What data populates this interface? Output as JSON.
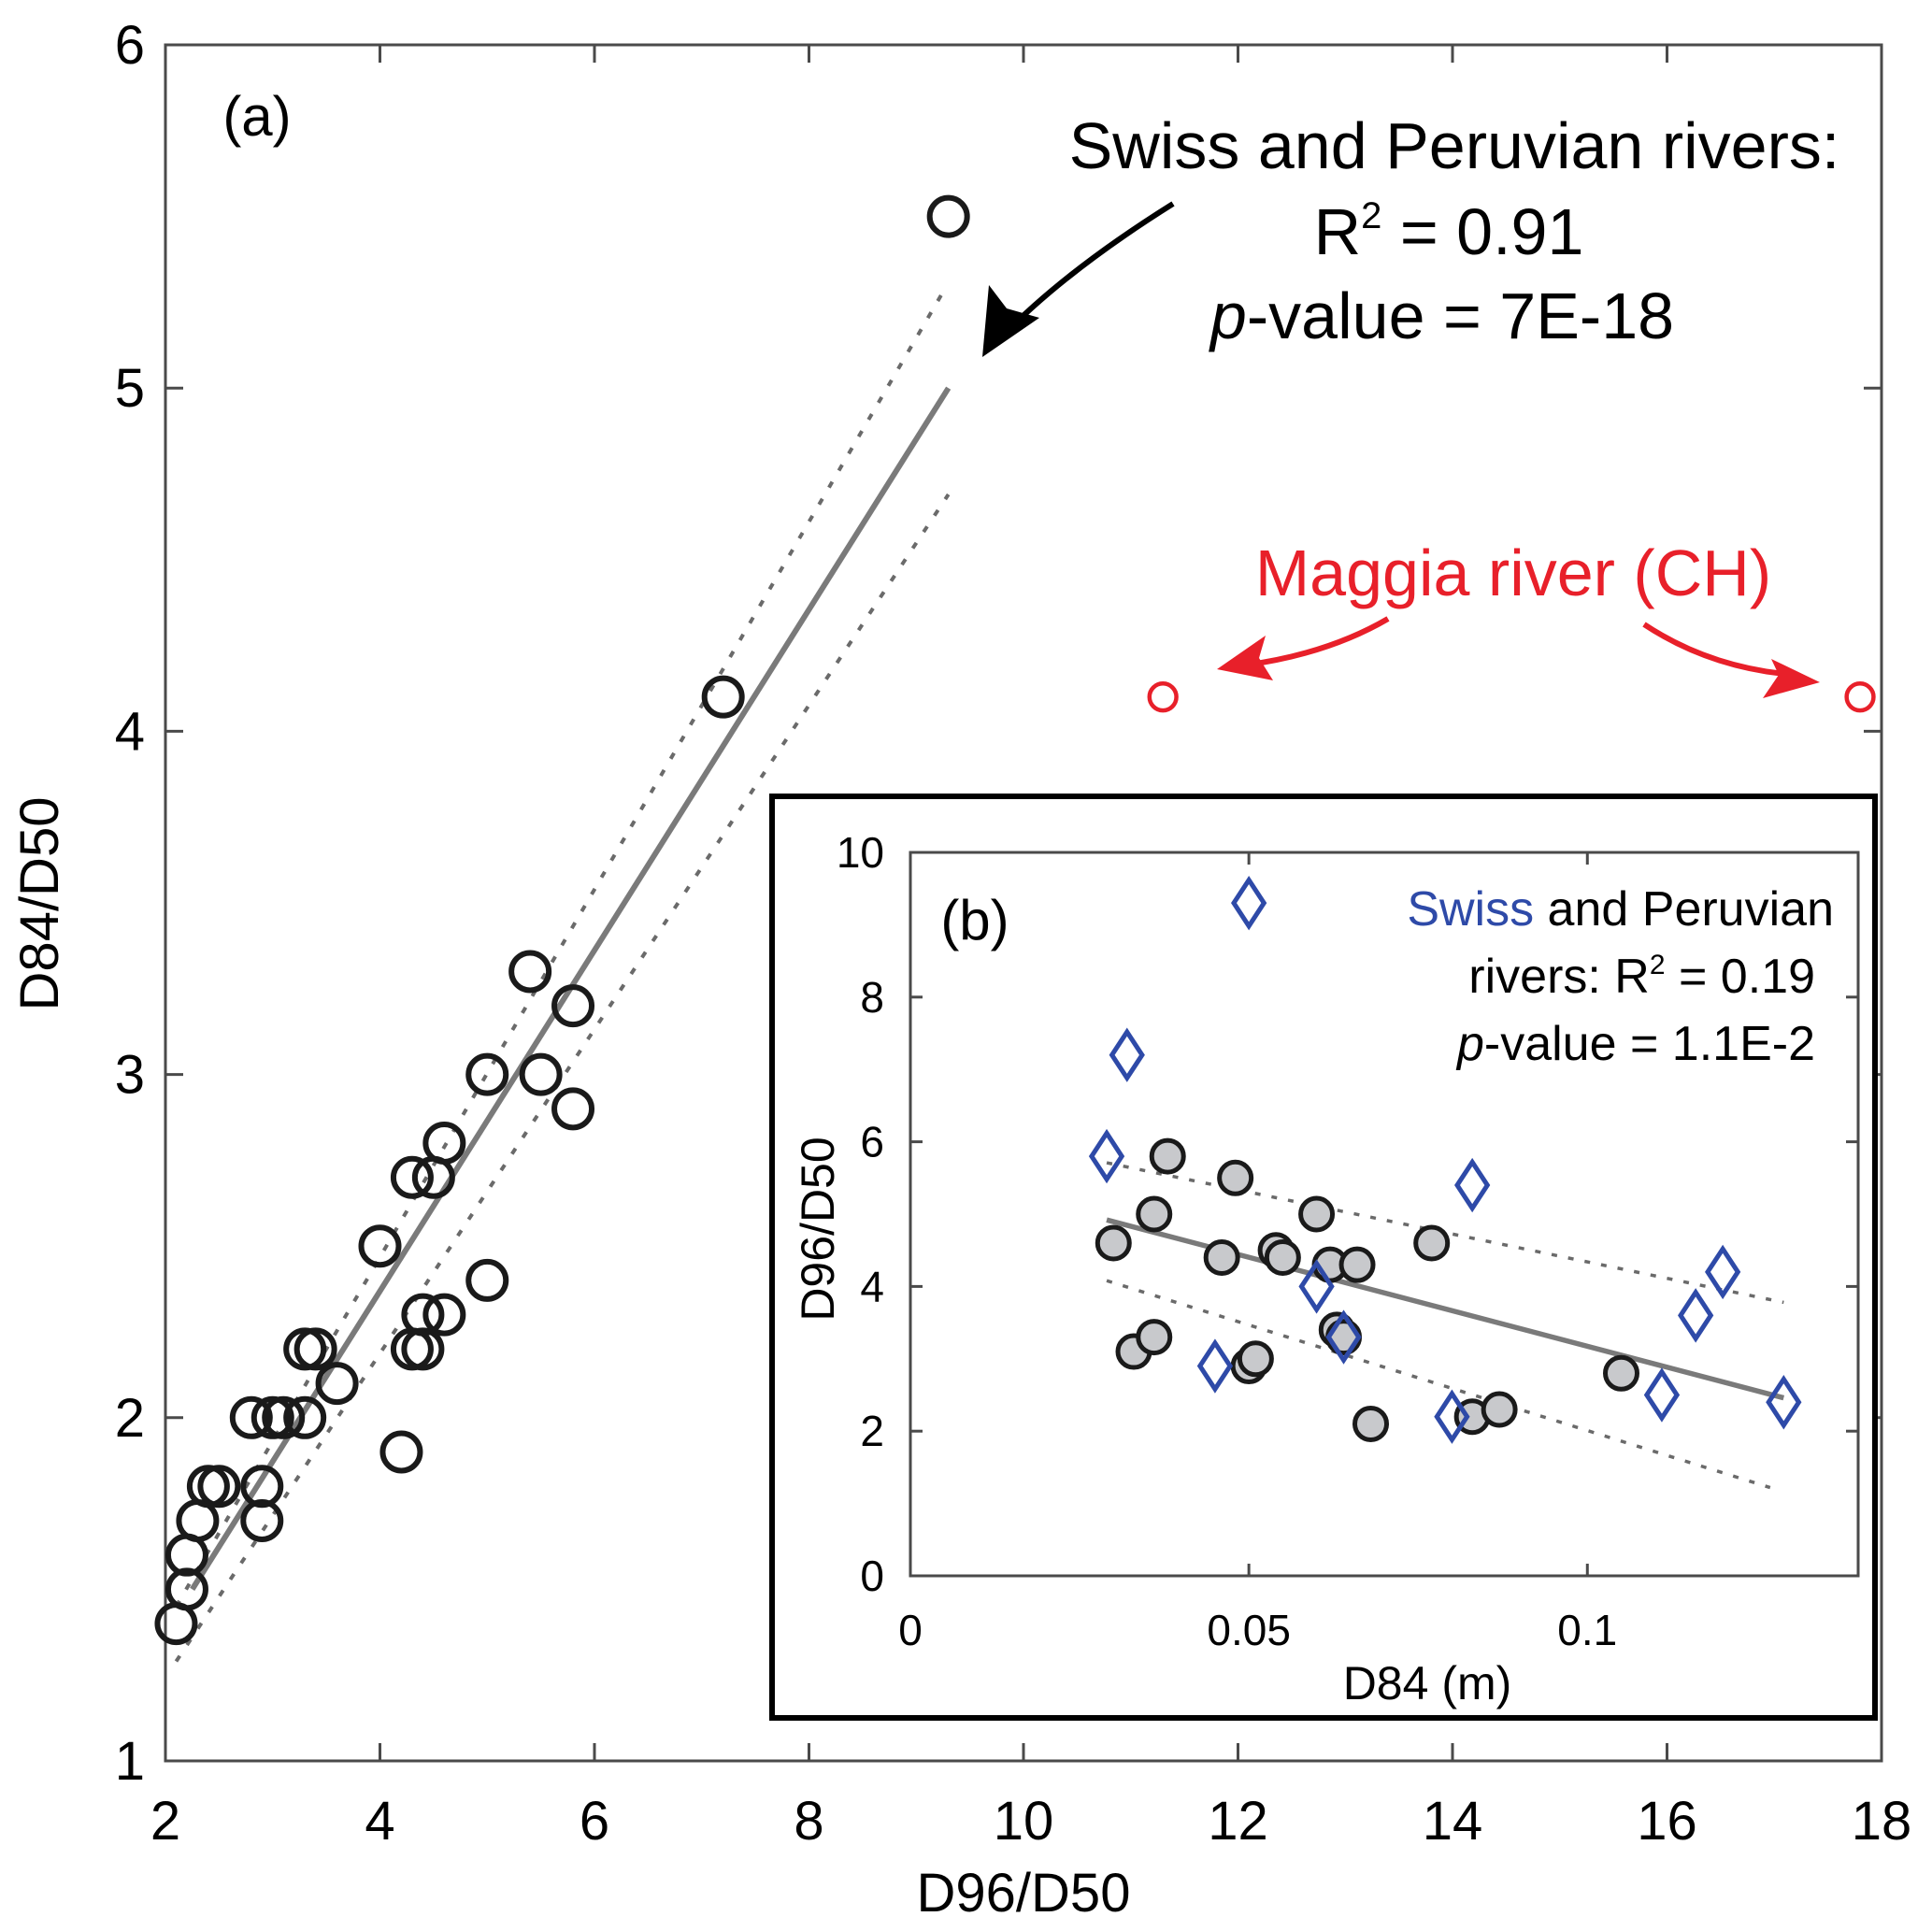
{
  "chart_data": [
    {
      "id": "a",
      "type": "scatter",
      "panel_label": "(a)",
      "xlabel": "D96/D50",
      "ylabel": "D84/D50",
      "xlim": [
        2,
        18
      ],
      "ylim": [
        1,
        6
      ],
      "xticks": [
        2,
        4,
        6,
        8,
        10,
        12,
        14,
        16,
        18
      ],
      "yticks": [
        1,
        2,
        3,
        4,
        5,
        6
      ],
      "grid": false,
      "series": [
        {
          "name": "Swiss and Peruvian rivers",
          "marker": "open-circle",
          "color": "#1a1a1a",
          "points": [
            [
              2.1,
              1.4
            ],
            [
              2.2,
              1.5
            ],
            [
              2.2,
              1.6
            ],
            [
              2.3,
              1.7
            ],
            [
              2.4,
              1.8
            ],
            [
              2.5,
              1.8
            ],
            [
              2.9,
              1.8
            ],
            [
              2.9,
              1.7
            ],
            [
              2.8,
              2.0
            ],
            [
              3.0,
              2.0
            ],
            [
              3.1,
              2.0
            ],
            [
              3.3,
              2.0
            ],
            [
              3.6,
              2.1
            ],
            [
              3.3,
              2.2
            ],
            [
              3.4,
              2.2
            ],
            [
              4.2,
              1.9
            ],
            [
              4.3,
              2.2
            ],
            [
              4.4,
              2.2
            ],
            [
              4.4,
              2.3
            ],
            [
              4.6,
              2.3
            ],
            [
              5.0,
              2.4
            ],
            [
              4.0,
              2.5
            ],
            [
              4.3,
              2.7
            ],
            [
              4.5,
              2.7
            ],
            [
              4.6,
              2.8
            ],
            [
              5.0,
              3.0
            ],
            [
              5.5,
              3.0
            ],
            [
              5.8,
              2.9
            ],
            [
              5.8,
              3.2
            ],
            [
              5.4,
              3.3
            ],
            [
              7.2,
              4.1
            ],
            [
              9.3,
              5.5
            ]
          ]
        },
        {
          "name": "Maggia river (CH)",
          "marker": "open-circle",
          "color": "#e8202a",
          "points": [
            [
              11.3,
              4.1
            ],
            [
              17.8,
              4.1
            ]
          ]
        }
      ],
      "fit": {
        "line": [
          [
            2.25,
            1.5
          ],
          [
            9.3,
            5.0
          ]
        ],
        "ci_upper": [
          [
            2.1,
            1.45
          ],
          [
            9.25,
            5.28
          ]
        ],
        "ci_lower": [
          [
            2.1,
            1.29
          ],
          [
            9.3,
            4.69
          ]
        ]
      },
      "annotations": {
        "swiss_peru": {
          "line1": "Swiss and Peruvian rivers:",
          "r2_prefix": "R",
          "r2_sup": "2",
          "r2_value": " = 0.91",
          "p_italic": "p",
          "p_value": "-value = 7E-18"
        },
        "maggia": "Maggia river (CH)"
      }
    },
    {
      "id": "b",
      "type": "scatter",
      "panel_label": "(b)",
      "xlabel": "D84 (m)",
      "ylabel": "D96/D50",
      "xlim": [
        0,
        0.14
      ],
      "ylim": [
        0,
        10
      ],
      "xticks": [
        0,
        0.05,
        0.1
      ],
      "xtick_labels": [
        "0",
        "0.05",
        "0.1"
      ],
      "yticks": [
        0,
        2,
        4,
        6,
        8,
        10
      ],
      "grid": false,
      "series": [
        {
          "name": "Peruvian rivers",
          "marker": "filled-circle",
          "color": "#c8c9cc",
          "points": [
            [
              0.03,
              4.6
            ],
            [
              0.036,
              5.0
            ],
            [
              0.038,
              5.8
            ],
            [
              0.033,
              3.1
            ],
            [
              0.036,
              3.3
            ],
            [
              0.048,
              5.5
            ],
            [
              0.046,
              4.4
            ],
            [
              0.054,
              4.5
            ],
            [
              0.055,
              4.4
            ],
            [
              0.05,
              2.9
            ],
            [
              0.051,
              3.0
            ],
            [
              0.06,
              5.0
            ],
            [
              0.062,
              4.3
            ],
            [
              0.066,
              4.3
            ],
            [
              0.063,
              3.4
            ],
            [
              0.064,
              3.3
            ],
            [
              0.068,
              2.1
            ],
            [
              0.077,
              4.6
            ],
            [
              0.083,
              2.2
            ],
            [
              0.087,
              2.3
            ],
            [
              0.105,
              2.8
            ]
          ]
        },
        {
          "name": "Swiss rivers",
          "marker": "open-diamond",
          "color": "#2e4aa8",
          "points": [
            [
              0.05,
              9.3
            ],
            [
              0.032,
              7.2
            ],
            [
              0.029,
              5.8
            ],
            [
              0.083,
              5.4
            ],
            [
              0.06,
              4.0
            ],
            [
              0.045,
              2.9
            ],
            [
              0.064,
              3.3
            ],
            [
              0.08,
              2.2
            ],
            [
              0.111,
              2.5
            ],
            [
              0.116,
              3.6
            ],
            [
              0.12,
              4.2
            ],
            [
              0.129,
              2.4
            ]
          ]
        }
      ],
      "fit": {
        "line": [
          [
            0.029,
            4.92
          ],
          [
            0.129,
            2.46
          ]
        ],
        "ci_upper": [
          [
            0.029,
            5.71
          ],
          [
            0.129,
            3.78
          ]
        ],
        "ci_lower": [
          [
            0.029,
            4.08
          ],
          [
            0.127,
            1.22
          ]
        ]
      },
      "annotations": {
        "swiss_word": "Swiss",
        "line1_rest": " and Peruvian",
        "line2_prefix": "rivers: R",
        "r2_sup": "2",
        "r2_value": " = 0.19",
        "p_italic": "p",
        "p_value": "-value = 1.1E-2"
      }
    }
  ]
}
